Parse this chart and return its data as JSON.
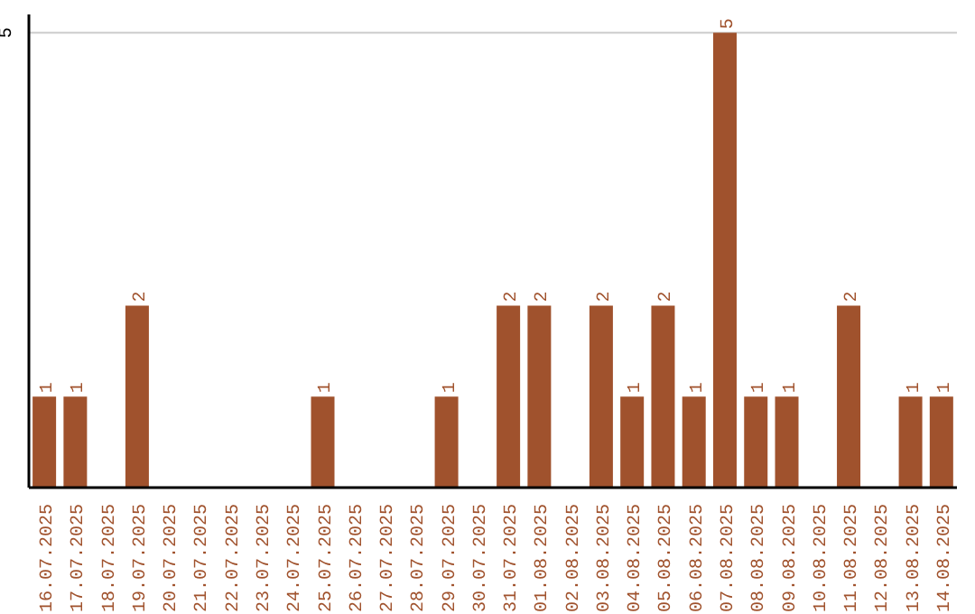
{
  "chart_data": {
    "type": "bar",
    "categories": [
      "16.07.2025",
      "17.07.2025",
      "18.07.2025",
      "19.07.2025",
      "20.07.2025",
      "21.07.2025",
      "22.07.2025",
      "23.07.2025",
      "24.07.2025",
      "25.07.2025",
      "26.07.2025",
      "27.07.2025",
      "28.07.2025",
      "29.07.2025",
      "30.07.2025",
      "31.07.2025",
      "01.08.2025",
      "02.08.2025",
      "03.08.2025",
      "04.08.2025",
      "05.08.2025",
      "06.08.2025",
      "07.08.2025",
      "08.08.2025",
      "09.08.2025",
      "10.08.2025",
      "11.08.2025",
      "12.08.2025",
      "13.08.2025",
      "14.08.2025"
    ],
    "values": [
      1,
      1,
      0,
      2,
      0,
      0,
      0,
      0,
      0,
      1,
      0,
      0,
      0,
      1,
      0,
      2,
      2,
      0,
      2,
      1,
      2,
      1,
      5,
      1,
      1,
      0,
      2,
      0,
      1,
      1
    ],
    "value_labels": [
      "1",
      "1",
      null,
      "2",
      null,
      null,
      null,
      null,
      null,
      "1",
      null,
      null,
      null,
      "1",
      null,
      "2",
      "2",
      null,
      "2",
      "1",
      "2",
      "1",
      "5",
      "1",
      "1",
      null,
      "2",
      null,
      "1",
      "1"
    ],
    "color": "#a0522d",
    "ylim": [
      0,
      5.2
    ],
    "yticks": [
      5
    ],
    "grid": "y"
  }
}
